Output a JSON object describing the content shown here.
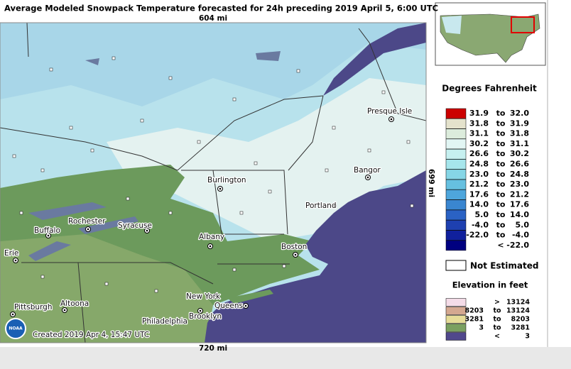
{
  "title": "Average Modeled Snowpack Temperature forecasted for 24h preceding 2019 April 5, 6:00 UTC",
  "scale_top": "604 mi",
  "scale_bottom": "720 mi",
  "scale_right": "699 mi",
  "created": "Created 2019 Apr 4, 15:47 UTC",
  "logo": "NOAA",
  "cities": [
    "Presque Isle",
    "Bangor",
    "Burlington",
    "Portland",
    "Rochester",
    "Buffalo",
    "Syracuse",
    "Albany",
    "Boston",
    "Erie",
    "Altoona",
    "Pittsburgh",
    "New York",
    "Queens",
    "Philadelphia",
    "Brooklyn"
  ],
  "temperature_legend": {
    "title": "Degrees Fahrenheit",
    "rows": [
      {
        "color": "#cc0000",
        "text": [
          "31.9",
          "to",
          "32.0"
        ]
      },
      {
        "color": "#e4e2cc",
        "text": [
          "31.8",
          "to",
          "31.9"
        ]
      },
      {
        "color": "#dcecdc",
        "text": [
          "31.1",
          "to",
          "31.8"
        ]
      },
      {
        "color": "#e2f6f4",
        "text": [
          "30.2",
          "to",
          "31.1"
        ]
      },
      {
        "color": "#c6f0f0",
        "text": [
          "26.6",
          "to",
          "30.2"
        ]
      },
      {
        "color": "#a6e6ec",
        "text": [
          "24.8",
          "to",
          "26.6"
        ]
      },
      {
        "color": "#86d6e6",
        "text": [
          "23.0",
          "to",
          "24.8"
        ]
      },
      {
        "color": "#66c0e0",
        "text": [
          "21.2",
          "to",
          "23.0"
        ]
      },
      {
        "color": "#4ea6dc",
        "text": [
          "17.6",
          "to",
          "21.2"
        ]
      },
      {
        "color": "#3a86d0",
        "text": [
          "14.0",
          "to",
          "17.6"
        ]
      },
      {
        "color": "#2a62c4",
        "text": [
          "5.0",
          "to",
          "14.0"
        ]
      },
      {
        "color": "#1e40b0",
        "text": [
          "-4.0",
          "to",
          "5.0"
        ]
      },
      {
        "color": "#10209c",
        "text": [
          "-22.0",
          "to",
          "-4.0"
        ]
      },
      {
        "color": "#000080",
        "text": [
          "<",
          "-22.0"
        ]
      }
    ],
    "not_estimated": "Not Estimated"
  },
  "elevation_legend": {
    "title": "Elevation in feet",
    "rows": [
      {
        "color": "#f4dce8",
        "text": [
          ">",
          "13124"
        ]
      },
      {
        "color": "#d4a890",
        "text": [
          "8203",
          "to",
          "13124"
        ]
      },
      {
        "color": "#e6dc98",
        "text": [
          "3281",
          "to",
          "8203"
        ]
      },
      {
        "color": "#7aa060",
        "text": [
          "3",
          "to",
          "3281"
        ]
      },
      {
        "color": "#50488c",
        "text": [
          "<",
          "3"
        ]
      }
    ]
  }
}
